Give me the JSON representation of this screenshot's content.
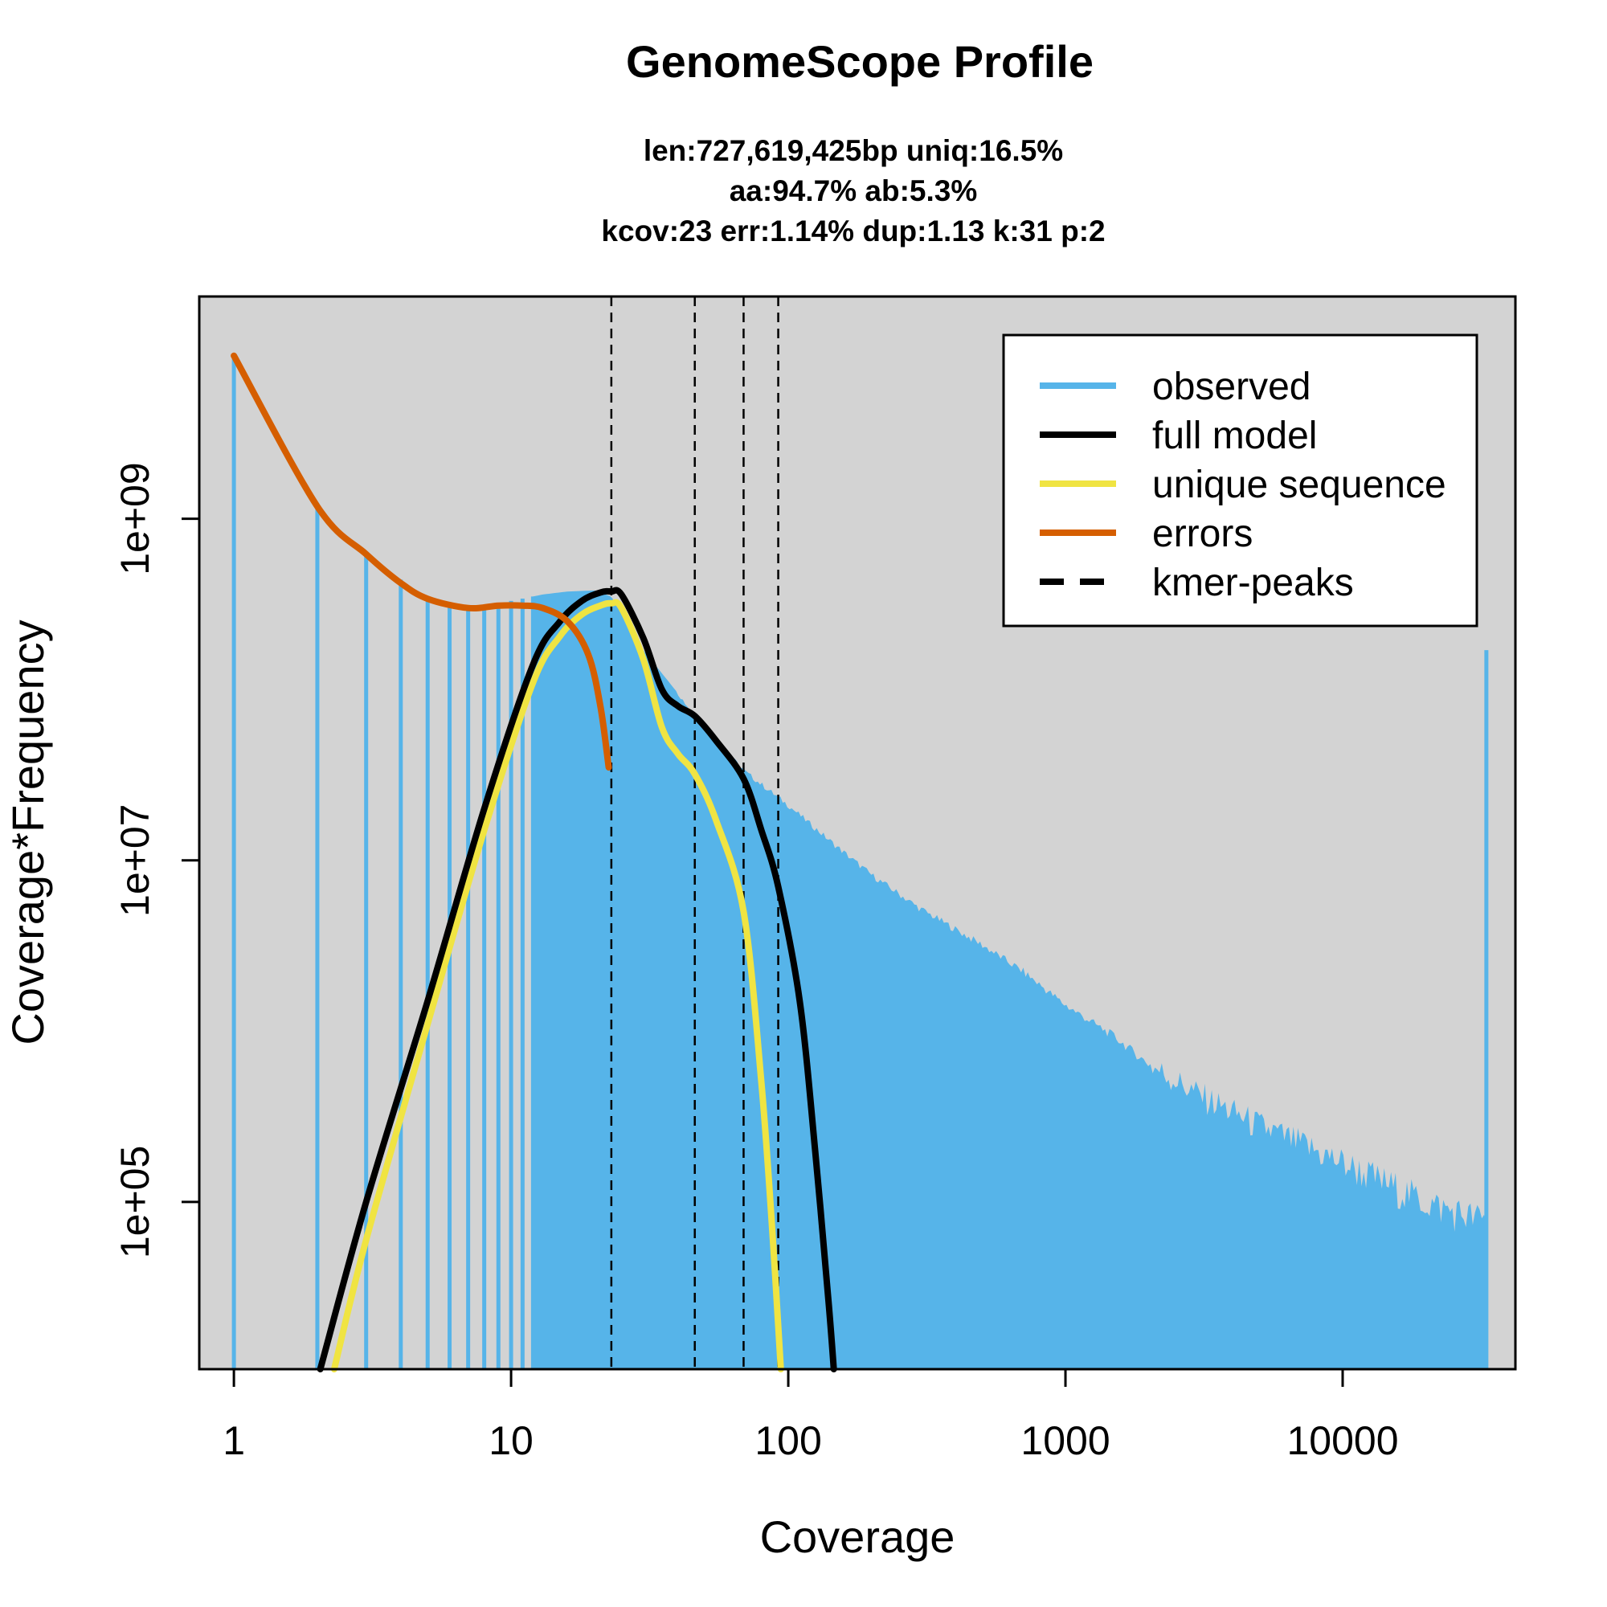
{
  "chart_data": {
    "type": "line",
    "title": "GenomeScope Profile",
    "subtitle_lines": [
      "len:727,619,425bp uniq:16.5%",
      "aa:94.7% ab:5.3%",
      "kcov:23 err:1.14%  dup:1.13  k:31 p:2"
    ],
    "xlabel": "Coverage",
    "ylabel": "Coverage*Frequency",
    "x_scale": "log",
    "y_scale": "log",
    "xlim": [
      0.75,
      42000
    ],
    "ylim": [
      10500,
      20000000000
    ],
    "x_ticks": [
      {
        "value": 1,
        "label": "1"
      },
      {
        "value": 10,
        "label": "10"
      },
      {
        "value": 100,
        "label": "100"
      },
      {
        "value": 1000,
        "label": "1000"
      },
      {
        "value": 10000,
        "label": "10000"
      }
    ],
    "y_ticks": [
      {
        "value": 100000,
        "label": "1e+05"
      },
      {
        "value": 10000000,
        "label": "1e+07"
      },
      {
        "value": 1000000000,
        "label": "1e+09"
      }
    ],
    "background": "#d3d3d3",
    "legend_position": "top-right",
    "kmer_peaks": [
      23,
      46,
      69,
      92
    ],
    "observed_anchors": [
      [
        1,
        8800000000
      ],
      [
        2,
        1230000000
      ],
      [
        3,
        640000000
      ],
      [
        4,
        440000000
      ],
      [
        5,
        340000000
      ],
      [
        6,
        310000000
      ],
      [
        7,
        300000000
      ],
      [
        8,
        310000000
      ],
      [
        10,
        330000000
      ],
      [
        13,
        360000000
      ],
      [
        16,
        375000000
      ],
      [
        20,
        380000000
      ],
      [
        23,
        350000000
      ],
      [
        30,
        170000000
      ],
      [
        40,
        95000000
      ],
      [
        50,
        58000000
      ],
      [
        70,
        33000000
      ],
      [
        100,
        21000000
      ],
      [
        150,
        12000000
      ],
      [
        200,
        8200000
      ],
      [
        300,
        5200000
      ],
      [
        500,
        3200000
      ],
      [
        700,
        2250000
      ],
      [
        1000,
        1420000
      ],
      [
        1500,
        930000
      ],
      [
        2000,
        640000
      ],
      [
        3000,
        430000
      ],
      [
        5000,
        280000
      ],
      [
        7000,
        220000
      ],
      [
        10000,
        170000
      ],
      [
        15000,
        125000
      ],
      [
        20000,
        100000
      ],
      [
        25000,
        88000
      ],
      [
        33000,
        78000
      ]
    ],
    "observed_last_spike": [
      33000,
      170000000
    ],
    "series": [
      {
        "name": "observed",
        "color": "#56b4e9",
        "style": "bars"
      },
      {
        "name": "full model",
        "color": "#000000",
        "style": "solid",
        "points": [
          [
            2.05,
            10500
          ],
          [
            3,
            100000
          ],
          [
            5,
            1500000
          ],
          [
            8,
            20000000
          ],
          [
            12,
            140000000
          ],
          [
            15,
            250000000
          ],
          [
            18,
            330000000
          ],
          [
            21,
            370000000
          ],
          [
            23,
            375000000
          ],
          [
            25,
            360000000
          ],
          [
            30,
            200000000
          ],
          [
            35,
            100000000
          ],
          [
            40,
            80000000
          ],
          [
            46,
            70000000
          ],
          [
            55,
            50000000
          ],
          [
            69,
            30000000
          ],
          [
            80,
            15000000
          ],
          [
            92,
            7000000
          ],
          [
            110,
            1500000
          ],
          [
            125,
            200000
          ],
          [
            140,
            25000
          ],
          [
            146,
            10500
          ]
        ]
      },
      {
        "name": "unique sequence",
        "color": "#f0e442",
        "style": "solid",
        "points": [
          [
            2.3,
            10500
          ],
          [
            3,
            60000
          ],
          [
            5,
            1100000
          ],
          [
            8,
            15000000
          ],
          [
            12,
            110000000
          ],
          [
            15,
            205000000
          ],
          [
            18,
            275000000
          ],
          [
            21,
            310000000
          ],
          [
            23,
            320000000
          ],
          [
            25,
            300000000
          ],
          [
            30,
            150000000
          ],
          [
            35,
            60000000
          ],
          [
            40,
            42000000
          ],
          [
            46,
            32000000
          ],
          [
            55,
            17000000
          ],
          [
            69,
            5000000
          ],
          [
            80,
            500000
          ],
          [
            88,
            60000
          ],
          [
            94,
            10500
          ]
        ]
      },
      {
        "name": "errors",
        "color": "#d55e00",
        "style": "solid",
        "points": [
          [
            1,
            9000000000
          ],
          [
            2,
            1180000000
          ],
          [
            3,
            620000000
          ],
          [
            4,
            420000000
          ],
          [
            5,
            340000000
          ],
          [
            7,
            300000000
          ],
          [
            9,
            310000000
          ],
          [
            11,
            310000000
          ],
          [
            13,
            300000000
          ],
          [
            16,
            250000000
          ],
          [
            19,
            160000000
          ],
          [
            21,
            80000000
          ],
          [
            22.5,
            35000000
          ]
        ]
      },
      {
        "name": "kmer-peaks",
        "color": "#000000",
        "style": "dashed"
      }
    ]
  }
}
